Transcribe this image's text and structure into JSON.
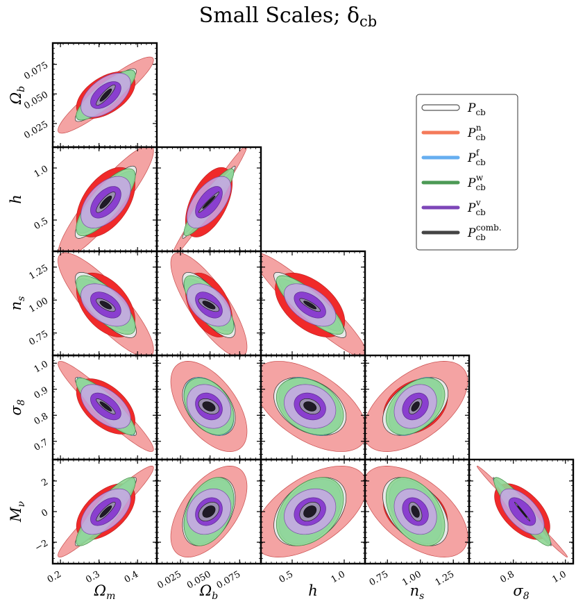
{
  "chart_data": {
    "type": "triangle-corner-contour",
    "title": "Small Scales; δ",
    "title_sub": "cb",
    "parameters": [
      {
        "key": "Om",
        "label": "Ω",
        "sub": "m",
        "fiducial": 0.3175,
        "range": [
          0.18,
          0.45
        ],
        "ticks": [
          0.2,
          0.3,
          0.4
        ],
        "tick_labels": [
          "0.2",
          "0.3",
          "0.4"
        ]
      },
      {
        "key": "Ob",
        "label": "Ω",
        "sub": "b",
        "fiducial": 0.049,
        "range": [
          0.005,
          0.093
        ],
        "ticks": [
          0.025,
          0.05,
          0.075
        ],
        "tick_labels": [
          "0.025",
          "0.050",
          "0.075"
        ]
      },
      {
        "key": "h",
        "label": "h",
        "sub": "",
        "fiducial": 0.6711,
        "range": [
          0.2,
          1.2
        ],
        "ticks": [
          0.5,
          1.0
        ],
        "tick_labels": [
          "0.5",
          "1.0"
        ]
      },
      {
        "key": "ns",
        "label": "n",
        "sub": "s",
        "fiducial": 0.9624,
        "range": [
          0.58,
          1.37
        ],
        "ticks": [
          0.75,
          1.0,
          1.25
        ],
        "tick_labels": [
          "0.75",
          "1.00",
          "1.25"
        ]
      },
      {
        "key": "s8",
        "label": "σ",
        "sub": "8",
        "fiducial": 0.834,
        "range": [
          0.63,
          1.03
        ],
        "ticks": [
          0.7,
          0.8,
          0.9,
          1.0
        ],
        "tick_labels": [
          "0.7",
          "0.8",
          "0.9",
          "1.0"
        ]
      },
      {
        "key": "Mnu",
        "label": "M",
        "sub": "ν",
        "fiducial": 0.0,
        "range": [
          -3.4,
          3.4
        ],
        "ticks": [
          -2,
          0,
          2
        ],
        "tick_labels": [
          "−2",
          "0",
          "2"
        ]
      }
    ],
    "x_axis_ticks_overrides": {
      "s8": {
        "ticks": [
          0.8,
          1.0
        ],
        "tick_labels": [
          "0.8",
          "1.0"
        ]
      }
    },
    "y_axis_ticks_overrides": {
      "Om": null,
      "s8": {
        "ticks": [
          0.7,
          0.8,
          0.9,
          1.0
        ],
        "tick_labels": [
          "0.7",
          "0.8",
          "0.9",
          "1.0"
        ]
      }
    },
    "legend": [
      {
        "base": "P",
        "sub": "cb",
        "sup": "",
        "color": "#ffffff",
        "edge": "#555555"
      },
      {
        "base": "P",
        "sub": "cb",
        "sup": "n",
        "color": "#f47a5a",
        "edge": "#f47a5a"
      },
      {
        "base": "P",
        "sub": "cb",
        "sup": "f",
        "color": "#66aef0",
        "edge": "#66aef0"
      },
      {
        "base": "P",
        "sub": "cb",
        "sup": "w",
        "color": "#4c9a55",
        "edge": "#4c9a55"
      },
      {
        "base": "P",
        "sub": "cb",
        "sup": "v",
        "color": "#7d46b8",
        "edge": "#7d46b8"
      },
      {
        "base": "P",
        "sub": "cb",
        "sup": "comb.",
        "color": "#444444",
        "edge": "#444444"
      }
    ],
    "series_colors": {
      "n_outer": "#f4a3a3",
      "n_inner": "#f02a2a",
      "base": "#e8e8e8",
      "f": "#9ed6e6",
      "w": "#8fd694",
      "v_outer": "#c8a6e8",
      "v_inner": "#8a3fcf",
      "comb_outer": "#9a8fb0",
      "comb_inner": "#1f1a26"
    },
    "sigma": {
      "Om": {
        "n": 0.05,
        "base": 0.032,
        "f": 0.03,
        "w": 0.031,
        "v": 0.026,
        "comb": 0.01
      },
      "Ob": {
        "n": 0.013,
        "base": 0.009,
        "f": 0.0085,
        "w": 0.0085,
        "v": 0.0075,
        "comb": 0.0035
      },
      "h": {
        "n": 0.22,
        "base": 0.14,
        "f": 0.12,
        "w": 0.13,
        "v": 0.1,
        "comb": 0.04
      },
      "ns": {
        "n": 0.16,
        "base": 0.1,
        "f": 0.08,
        "w": 0.09,
        "v": 0.065,
        "comb": 0.02
      },
      "s8": {
        "n": 0.07,
        "base": 0.045,
        "f": 0.045,
        "w": 0.044,
        "v": 0.034,
        "comb": 0.012
      },
      "Mnu": {
        "n": 1.2,
        "base": 0.9,
        "f": 0.85,
        "w": 0.9,
        "v": 0.6,
        "comb": 0.25
      }
    },
    "correlation": {
      "Om|Ob": {
        "n": 0.92,
        "base": 0.9,
        "f": 0.9,
        "w": 0.9,
        "v": 0.88,
        "comb": 0.88
      },
      "Om|h": {
        "n": 0.9,
        "base": 0.88,
        "f": 0.85,
        "w": 0.85,
        "v": 0.84,
        "comb": 0.82
      },
      "Om|ns": {
        "n": -0.85,
        "base": -0.8,
        "f": -0.8,
        "w": -0.8,
        "v": -0.75,
        "comb": -0.7
      },
      "Om|s8": {
        "n": -0.95,
        "base": -0.93,
        "f": -0.93,
        "w": -0.93,
        "v": -0.9,
        "comb": -0.88
      },
      "Om|Mnu": {
        "n": 0.96,
        "base": 0.94,
        "f": 0.94,
        "w": 0.94,
        "v": 0.9,
        "comb": 0.88
      },
      "Ob|h": {
        "n": 0.985,
        "base": 0.98,
        "f": 0.98,
        "w": 0.98,
        "v": 0.975,
        "comb": 0.97
      },
      "Ob|ns": {
        "n": -0.8,
        "base": -0.78,
        "f": -0.78,
        "w": -0.78,
        "v": -0.75,
        "comb": -0.7
      },
      "Ob|s8": {
        "n": -0.55,
        "base": -0.4,
        "f": -0.4,
        "w": -0.4,
        "v": -0.35,
        "comb": -0.35
      },
      "Ob|Mnu": {
        "n": 0.55,
        "base": 0.4,
        "f": 0.4,
        "w": 0.4,
        "v": 0.35,
        "comb": 0.35
      },
      "h|ns": {
        "n": -0.93,
        "base": -0.9,
        "f": -0.9,
        "w": -0.9,
        "v": -0.88,
        "comb": -0.85
      },
      "h|s8": {
        "n": -0.55,
        "base": -0.35,
        "f": -0.35,
        "w": -0.35,
        "v": -0.3,
        "comb": -0.3
      },
      "h|Mnu": {
        "n": 0.55,
        "base": 0.4,
        "f": 0.4,
        "w": 0.4,
        "v": 0.35,
        "comb": 0.3
      },
      "ns|s8": {
        "n": 0.55,
        "base": 0.45,
        "f": 0.45,
        "w": 0.45,
        "v": 0.4,
        "comb": 0.55
      },
      "ns|Mnu": {
        "n": -0.55,
        "base": -0.45,
        "f": -0.45,
        "w": -0.45,
        "v": -0.4,
        "comb": -0.45
      },
      "s8|Mnu": {
        "n": -0.995,
        "base": -0.994,
        "f": -0.994,
        "w": -0.994,
        "v": -0.99,
        "comb": -0.99
      }
    },
    "layers": [
      "n",
      "base",
      "f",
      "w",
      "v",
      "comb"
    ],
    "legend_position": "right-upper",
    "grid": false
  }
}
